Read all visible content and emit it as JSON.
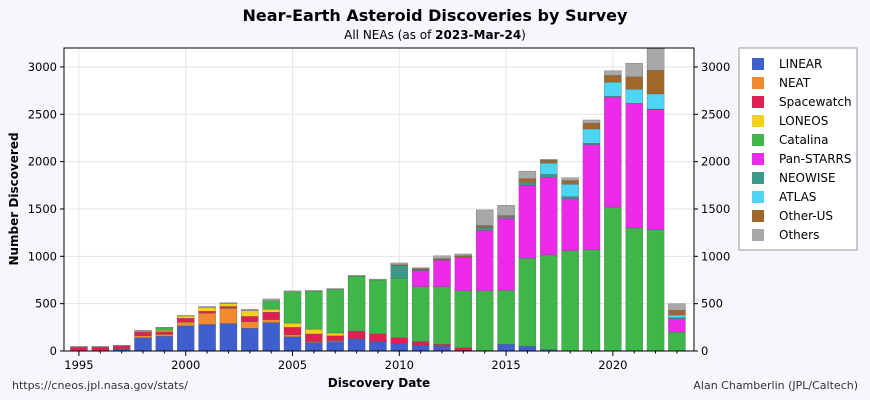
{
  "page": {
    "source_link": "https://cneos.jpl.nasa.gov/stats/",
    "credit": "Alan Chamberlin (JPL/Caltech)"
  },
  "colors": {
    "background": "#f6f7fc",
    "plot_background": "#ffffff",
    "grid": "#e6e6e6"
  },
  "chart_data": {
    "type": "bar",
    "stacked": true,
    "title": "Near-Earth Asteroid Discoveries by Survey",
    "subtitle_prefix": "All NEAs (as of ",
    "subtitle_date": "2023-Mar-24",
    "subtitle_suffix": ")",
    "xlabel": "Discovery Date",
    "ylabel": "Number Discovered",
    "xlim": [
      1994.3,
      2023.8
    ],
    "ylim": [
      0,
      3200
    ],
    "x_ticks": [
      1995,
      2000,
      2005,
      2010,
      2015,
      2020
    ],
    "y_ticks": [
      0,
      500,
      1000,
      1500,
      2000,
      2500,
      3000
    ],
    "y_axis_both_sides": true,
    "grid": true,
    "legend_position": "right-outside",
    "x": [
      1995,
      1996,
      1997,
      1998,
      1999,
      2000,
      2001,
      2002,
      2003,
      2004,
      2005,
      2006,
      2007,
      2008,
      2009,
      2010,
      2011,
      2012,
      2013,
      2014,
      2015,
      2016,
      2017,
      2018,
      2019,
      2020,
      2021,
      2022,
      2023
    ],
    "series": [
      {
        "name": "LINEAR",
        "color": "#3f5fcf",
        "values": [
          0,
          0,
          20,
          140,
          155,
          265,
          280,
          290,
          240,
          300,
          150,
          90,
          100,
          130,
          100,
          80,
          60,
          50,
          5,
          5,
          70,
          50,
          15,
          0,
          0,
          0,
          0,
          0,
          0
        ]
      },
      {
        "name": "NEAT",
        "color": "#f28a30",
        "values": [
          0,
          0,
          5,
          20,
          20,
          40,
          120,
          160,
          70,
          30,
          20,
          10,
          10,
          0,
          0,
          0,
          0,
          0,
          0,
          0,
          0,
          0,
          0,
          0,
          0,
          0,
          0,
          0,
          0
        ]
      },
      {
        "name": "Spacewatch",
        "color": "#e02050",
        "values": [
          40,
          40,
          30,
          40,
          30,
          40,
          20,
          20,
          55,
          80,
          80,
          80,
          50,
          80,
          80,
          60,
          40,
          20,
          30,
          0,
          0,
          0,
          0,
          0,
          0,
          0,
          0,
          0,
          0
        ]
      },
      {
        "name": "LONEOS",
        "color": "#f5d21a",
        "values": [
          0,
          0,
          0,
          10,
          15,
          25,
          40,
          30,
          60,
          30,
          45,
          50,
          30,
          0,
          0,
          0,
          0,
          0,
          0,
          0,
          0,
          0,
          0,
          0,
          0,
          0,
          0,
          0,
          0
        ]
      },
      {
        "name": "Catalina",
        "color": "#3fb64a",
        "values": [
          0,
          0,
          0,
          0,
          25,
          0,
          0,
          0,
          0,
          90,
          330,
          400,
          460,
          580,
          570,
          630,
          580,
          610,
          600,
          630,
          570,
          930,
          1000,
          1060,
          1070,
          1520,
          1300,
          1280,
          200
        ]
      },
      {
        "name": "Pan-STARRS",
        "color": "#ee2aea",
        "values": [
          0,
          0,
          0,
          0,
          0,
          0,
          0,
          0,
          0,
          0,
          0,
          0,
          0,
          0,
          0,
          0,
          170,
          280,
          350,
          640,
          760,
          770,
          820,
          550,
          1110,
          1160,
          1310,
          1270,
          140
        ]
      },
      {
        "name": "NEOWISE",
        "color": "#3a9a8a",
        "values": [
          0,
          0,
          0,
          0,
          0,
          0,
          0,
          0,
          0,
          0,
          0,
          0,
          0,
          0,
          0,
          130,
          10,
          5,
          10,
          30,
          10,
          20,
          30,
          20,
          15,
          10,
          5,
          5,
          10
        ]
      },
      {
        "name": "ATLAS",
        "color": "#4cd6f2",
        "values": [
          0,
          0,
          0,
          0,
          0,
          0,
          0,
          0,
          0,
          0,
          0,
          0,
          0,
          0,
          0,
          0,
          0,
          0,
          0,
          0,
          10,
          10,
          120,
          130,
          150,
          150,
          150,
          160,
          30
        ]
      },
      {
        "name": "Other-US",
        "color": "#a0672a",
        "values": [
          0,
          0,
          0,
          0,
          0,
          0,
          0,
          0,
          0,
          0,
          0,
          0,
          0,
          0,
          0,
          10,
          10,
          10,
          10,
          20,
          10,
          40,
          30,
          40,
          60,
          70,
          130,
          250,
          50
        ]
      },
      {
        "name": "Others",
        "color": "#a8a8a8",
        "values": [
          10,
          10,
          5,
          10,
          5,
          5,
          10,
          10,
          15,
          20,
          10,
          10,
          10,
          10,
          10,
          20,
          10,
          30,
          20,
          165,
          110,
          80,
          10,
          30,
          35,
          50,
          145,
          230,
          70
        ]
      }
    ]
  }
}
